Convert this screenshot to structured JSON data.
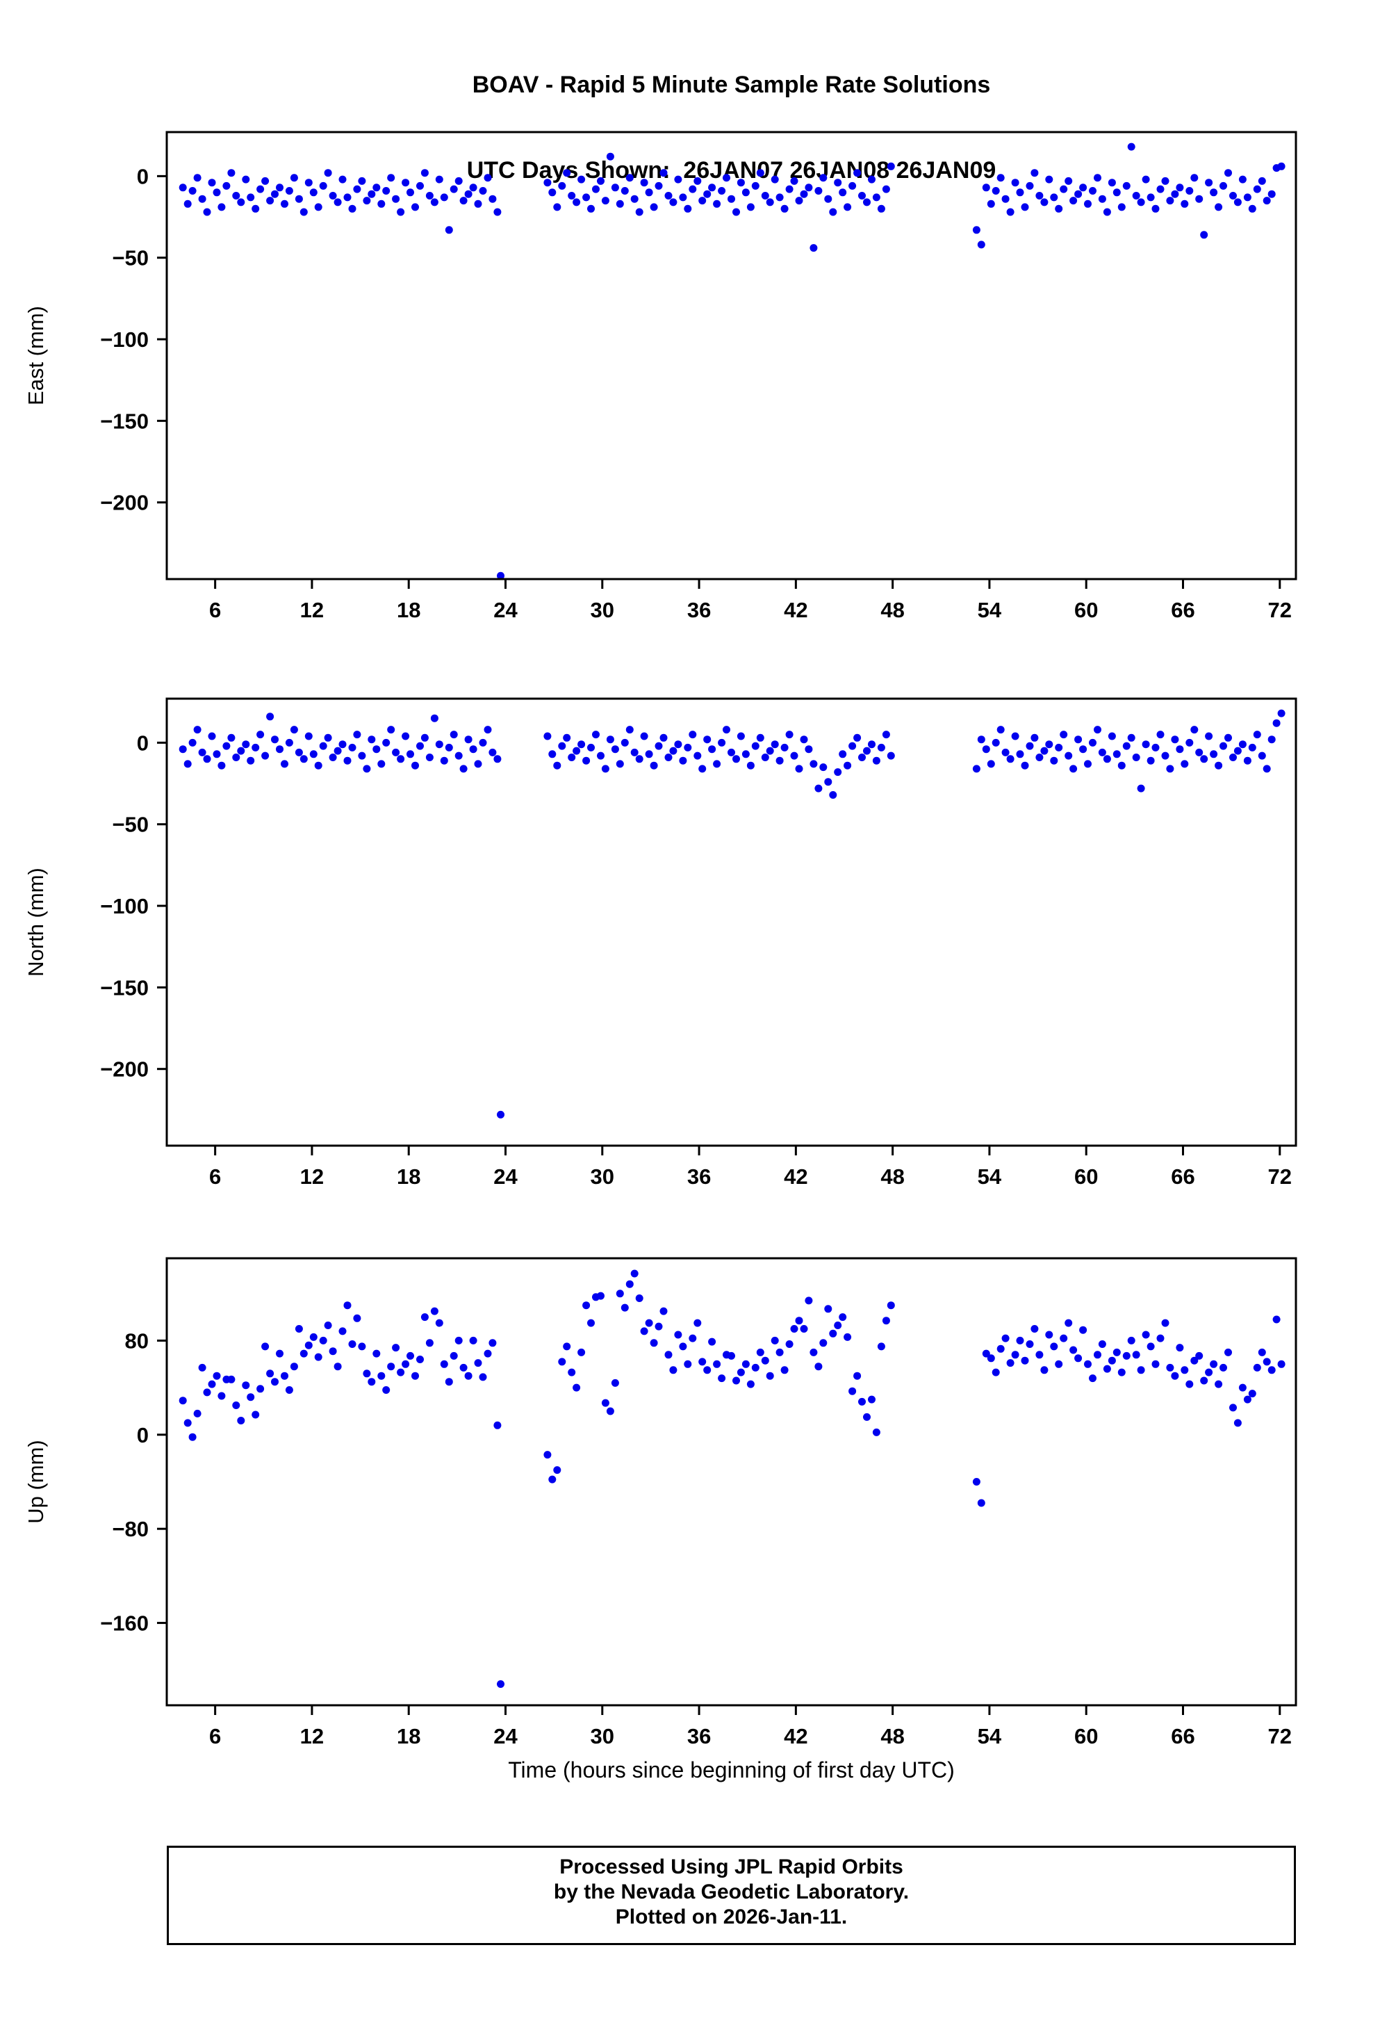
{
  "header": {
    "title_line1": "BOAV - Rapid 5 Minute Sample Rate Solutions",
    "title_line2": "UTC Days Shown:  26JAN07 26JAN08 26JAN09"
  },
  "footer": {
    "line1": "Processed Using JPL Rapid Orbits",
    "line2": "by the Nevada Geodetic Laboratory.",
    "line3": "Plotted on 2026-Jan-11."
  },
  "chart_data": {
    "type": "scatter",
    "title": "BOAV - Rapid 5 Minute Sample Rate Solutions",
    "subtitle": "UTC Days Shown:  26JAN07 26JAN08 26JAN09",
    "xlabel": "Time (hours since beginning of first day UTC)",
    "marker_color": "#0000ee",
    "xlim": [
      3,
      73
    ],
    "x_ticks": [
      6,
      12,
      18,
      24,
      30,
      36,
      42,
      48,
      54,
      60,
      66,
      72
    ],
    "panels": [
      {
        "id": "east",
        "ylabel": "East (mm)",
        "ylim": [
          -247,
          27
        ],
        "yticks": [
          0,
          -50,
          -100,
          -150,
          -200
        ],
        "vi": 1
      },
      {
        "id": "north",
        "ylabel": "North (mm)",
        "ylim": [
          -247,
          27
        ],
        "yticks": [
          0,
          -50,
          -100,
          -150,
          -200
        ],
        "vi": 2
      },
      {
        "id": "up",
        "ylabel": "Up (mm)",
        "ylim": [
          -230,
          150
        ],
        "yticks": [
          80,
          0,
          -80,
          -160
        ],
        "vi": 3
      }
    ],
    "points": [
      [
        4.0,
        -7,
        -4,
        29
      ],
      [
        4.3,
        -17,
        -13,
        10
      ],
      [
        4.6,
        -9,
        0,
        -2
      ],
      [
        4.9,
        -1,
        8,
        18
      ],
      [
        5.2,
        -14,
        -6,
        57
      ],
      [
        5.5,
        -22,
        -10,
        36
      ],
      [
        5.8,
        -4,
        4,
        43
      ],
      [
        6.1,
        -10,
        -7,
        50
      ],
      [
        6.4,
        -19,
        -14,
        33
      ],
      [
        6.7,
        -6,
        -2,
        47
      ],
      [
        7.0,
        2,
        3,
        47
      ],
      [
        7.3,
        -12,
        -9,
        25
      ],
      [
        7.6,
        -16,
        -5,
        12
      ],
      [
        7.9,
        -2,
        -1,
        42
      ],
      [
        8.2,
        -13,
        -11,
        32
      ],
      [
        8.5,
        -20,
        -3,
        17
      ],
      [
        8.8,
        -8,
        5,
        39
      ],
      [
        9.1,
        -3,
        -8,
        75
      ],
      [
        9.4,
        -15,
        16,
        52
      ],
      [
        9.7,
        -11,
        2,
        45
      ],
      [
        10.0,
        -7,
        -4,
        69
      ],
      [
        10.3,
        -17,
        -13,
        50
      ],
      [
        10.6,
        -9,
        0,
        38
      ],
      [
        10.9,
        -1,
        8,
        58
      ],
      [
        11.2,
        -14,
        -6,
        90
      ],
      [
        11.5,
        -22,
        -10,
        69
      ],
      [
        11.8,
        -4,
        4,
        76
      ],
      [
        12.1,
        -10,
        -7,
        83
      ],
      [
        12.4,
        -19,
        -14,
        66
      ],
      [
        12.7,
        -6,
        -2,
        80
      ],
      [
        13.0,
        2,
        3,
        93
      ],
      [
        13.3,
        -12,
        -9,
        71
      ],
      [
        13.6,
        -16,
        -5,
        58
      ],
      [
        13.9,
        -2,
        -1,
        88
      ],
      [
        14.2,
        -13,
        -11,
        110
      ],
      [
        14.5,
        -20,
        -3,
        77
      ],
      [
        14.8,
        -8,
        5,
        99
      ],
      [
        15.1,
        -3,
        -8,
        75
      ],
      [
        15.4,
        -15,
        -16,
        52
      ],
      [
        15.7,
        -11,
        2,
        45
      ],
      [
        16.0,
        -7,
        -4,
        69
      ],
      [
        16.3,
        -17,
        -13,
        50
      ],
      [
        16.6,
        -9,
        0,
        38
      ],
      [
        16.9,
        -1,
        8,
        58
      ],
      [
        17.2,
        -14,
        -6,
        74
      ],
      [
        17.5,
        -22,
        -10,
        53
      ],
      [
        17.8,
        -4,
        4,
        60
      ],
      [
        18.1,
        -10,
        -7,
        67
      ],
      [
        18.4,
        -19,
        -14,
        50
      ],
      [
        18.7,
        -6,
        -2,
        64
      ],
      [
        19.0,
        2,
        3,
        100
      ],
      [
        19.3,
        -12,
        -9,
        78
      ],
      [
        19.6,
        -16,
        15,
        105
      ],
      [
        19.9,
        -2,
        -1,
        95
      ],
      [
        20.2,
        -13,
        -11,
        60
      ],
      [
        20.5,
        -33,
        -3,
        45
      ],
      [
        20.8,
        -8,
        5,
        67
      ],
      [
        21.1,
        -3,
        -8,
        80
      ],
      [
        21.4,
        -15,
        -16,
        57
      ],
      [
        21.7,
        -11,
        2,
        50
      ],
      [
        22.0,
        -7,
        -4,
        80
      ],
      [
        22.3,
        -17,
        -13,
        61
      ],
      [
        22.6,
        -9,
        0,
        49
      ],
      [
        22.9,
        -1,
        8,
        69
      ],
      [
        23.2,
        -14,
        -6,
        78
      ],
      [
        23.5,
        -22,
        -10,
        8
      ],
      [
        23.7,
        -245,
        -228,
        -212
      ],
      [
        26.6,
        -4,
        4,
        -17
      ],
      [
        26.9,
        -10,
        -7,
        -38
      ],
      [
        27.2,
        -19,
        -14,
        -30
      ],
      [
        27.5,
        -6,
        -2,
        62
      ],
      [
        27.8,
        2,
        3,
        75
      ],
      [
        28.1,
        -12,
        -9,
        53
      ],
      [
        28.4,
        -16,
        -5,
        40
      ],
      [
        28.7,
        -2,
        -1,
        70
      ],
      [
        29.0,
        -13,
        -11,
        110
      ],
      [
        29.3,
        -20,
        -3,
        95
      ],
      [
        29.6,
        -8,
        5,
        117
      ],
      [
        29.9,
        -3,
        -8,
        118
      ],
      [
        30.2,
        -15,
        -16,
        27
      ],
      [
        30.5,
        12,
        2,
        20
      ],
      [
        30.8,
        -7,
        -4,
        44
      ],
      [
        31.1,
        -17,
        -13,
        120
      ],
      [
        31.4,
        -9,
        0,
        108
      ],
      [
        31.7,
        -1,
        8,
        128
      ],
      [
        32.0,
        -14,
        -6,
        137
      ],
      [
        32.3,
        -22,
        -10,
        116
      ],
      [
        32.6,
        -4,
        4,
        88
      ],
      [
        32.9,
        -10,
        -7,
        95
      ],
      [
        33.2,
        -19,
        -14,
        78
      ],
      [
        33.5,
        -6,
        -2,
        92
      ],
      [
        33.8,
        2,
        3,
        105
      ],
      [
        34.1,
        -12,
        -9,
        68
      ],
      [
        34.4,
        -16,
        -5,
        55
      ],
      [
        34.7,
        -2,
        -1,
        85
      ],
      [
        35.0,
        -13,
        -11,
        75
      ],
      [
        35.3,
        -20,
        -3,
        60
      ],
      [
        35.6,
        -8,
        5,
        82
      ],
      [
        35.9,
        -3,
        -8,
        95
      ],
      [
        36.2,
        -15,
        -16,
        62
      ],
      [
        36.5,
        -11,
        2,
        55
      ],
      [
        36.8,
        -7,
        -4,
        79
      ],
      [
        37.1,
        -17,
        -13,
        60
      ],
      [
        37.4,
        -9,
        0,
        48
      ],
      [
        37.7,
        -1,
        8,
        68
      ],
      [
        38.0,
        -14,
        -6,
        67
      ],
      [
        38.3,
        -22,
        -10,
        46
      ],
      [
        38.6,
        -4,
        4,
        53
      ],
      [
        38.9,
        -10,
        -7,
        60
      ],
      [
        39.2,
        -19,
        -14,
        43
      ],
      [
        39.5,
        -6,
        -2,
        57
      ],
      [
        39.8,
        2,
        3,
        70
      ],
      [
        40.1,
        -12,
        -9,
        63
      ],
      [
        40.4,
        -16,
        -5,
        50
      ],
      [
        40.7,
        -2,
        -1,
        80
      ],
      [
        41.0,
        -13,
        -11,
        70
      ],
      [
        41.3,
        -20,
        -3,
        55
      ],
      [
        41.6,
        -8,
        5,
        77
      ],
      [
        41.9,
        -3,
        -8,
        90
      ],
      [
        42.2,
        -15,
        -16,
        97
      ],
      [
        42.5,
        -11,
        2,
        90
      ],
      [
        42.8,
        -7,
        -4,
        114
      ],
      [
        43.1,
        -44,
        -13,
        70
      ],
      [
        43.4,
        -9,
        -28,
        58
      ],
      [
        43.7,
        -1,
        -15,
        78
      ],
      [
        44.0,
        -14,
        -24,
        107
      ],
      [
        44.3,
        -22,
        -32,
        86
      ],
      [
        44.6,
        -4,
        -18,
        93
      ],
      [
        44.9,
        -10,
        -7,
        100
      ],
      [
        45.2,
        -19,
        -14,
        83
      ],
      [
        45.5,
        -6,
        -2,
        37
      ],
      [
        45.8,
        2,
        3,
        50
      ],
      [
        46.1,
        -12,
        -9,
        28
      ],
      [
        46.4,
        -16,
        -5,
        15
      ],
      [
        46.7,
        -2,
        -1,
        30
      ],
      [
        47.0,
        -13,
        -11,
        2
      ],
      [
        47.3,
        -20,
        -3,
        75
      ],
      [
        47.6,
        -8,
        5,
        97
      ],
      [
        47.9,
        6,
        -8,
        110
      ],
      [
        53.2,
        -33,
        -16,
        -40
      ],
      [
        53.5,
        -42,
        2,
        -58
      ],
      [
        53.8,
        -7,
        -4,
        69
      ],
      [
        54.1,
        -17,
        -13,
        65
      ],
      [
        54.4,
        -9,
        0,
        53
      ],
      [
        54.7,
        -1,
        8,
        73
      ],
      [
        55.0,
        -14,
        -6,
        82
      ],
      [
        55.3,
        -22,
        -10,
        61
      ],
      [
        55.6,
        -4,
        4,
        68
      ],
      [
        55.9,
        -10,
        -7,
        80
      ],
      [
        56.2,
        -19,
        -14,
        63
      ],
      [
        56.5,
        -6,
        -2,
        77
      ],
      [
        56.8,
        2,
        3,
        90
      ],
      [
        57.1,
        -12,
        -9,
        68
      ],
      [
        57.4,
        -16,
        -5,
        55
      ],
      [
        57.7,
        -2,
        -1,
        85
      ],
      [
        58.0,
        -13,
        -11,
        75
      ],
      [
        58.3,
        -20,
        -3,
        60
      ],
      [
        58.6,
        -8,
        5,
        82
      ],
      [
        58.9,
        -3,
        -8,
        95
      ],
      [
        59.2,
        -15,
        -16,
        72
      ],
      [
        59.5,
        -11,
        2,
        65
      ],
      [
        59.8,
        -7,
        -4,
        89
      ],
      [
        60.1,
        -17,
        -13,
        60
      ],
      [
        60.4,
        -9,
        0,
        48
      ],
      [
        60.7,
        -1,
        8,
        68
      ],
      [
        61.0,
        -14,
        -6,
        77
      ],
      [
        61.3,
        -22,
        -10,
        56
      ],
      [
        61.6,
        -4,
        4,
        63
      ],
      [
        61.9,
        -10,
        -7,
        70
      ],
      [
        62.2,
        -19,
        -14,
        53
      ],
      [
        62.5,
        -6,
        -2,
        67
      ],
      [
        62.8,
        18,
        3,
        80
      ],
      [
        63.1,
        -12,
        -9,
        68
      ],
      [
        63.4,
        -16,
        -28,
        55
      ],
      [
        63.7,
        -2,
        -1,
        85
      ],
      [
        64.0,
        -13,
        -11,
        75
      ],
      [
        64.3,
        -20,
        -3,
        60
      ],
      [
        64.6,
        -8,
        5,
        82
      ],
      [
        64.9,
        -3,
        -8,
        95
      ],
      [
        65.2,
        -15,
        -16,
        57
      ],
      [
        65.5,
        -11,
        2,
        50
      ],
      [
        65.8,
        -7,
        -4,
        74
      ],
      [
        66.1,
        -17,
        -13,
        55
      ],
      [
        66.4,
        -9,
        0,
        43
      ],
      [
        66.7,
        -1,
        8,
        63
      ],
      [
        67.0,
        -14,
        -6,
        67
      ],
      [
        67.3,
        -36,
        -10,
        46
      ],
      [
        67.6,
        -4,
        4,
        53
      ],
      [
        67.9,
        -10,
        -7,
        60
      ],
      [
        68.2,
        -19,
        -14,
        43
      ],
      [
        68.5,
        -6,
        -2,
        57
      ],
      [
        68.8,
        2,
        3,
        70
      ],
      [
        69.1,
        -12,
        -9,
        23
      ],
      [
        69.4,
        -16,
        -5,
        10
      ],
      [
        69.7,
        -2,
        -1,
        40
      ],
      [
        70.0,
        -13,
        -11,
        30
      ],
      [
        70.3,
        -20,
        -3,
        35
      ],
      [
        70.6,
        -8,
        5,
        57
      ],
      [
        70.9,
        -3,
        -8,
        70
      ],
      [
        71.2,
        -15,
        -16,
        62
      ],
      [
        71.5,
        -11,
        2,
        55
      ],
      [
        71.8,
        5,
        12,
        98
      ],
      [
        72.1,
        6,
        18,
        60
      ]
    ]
  }
}
